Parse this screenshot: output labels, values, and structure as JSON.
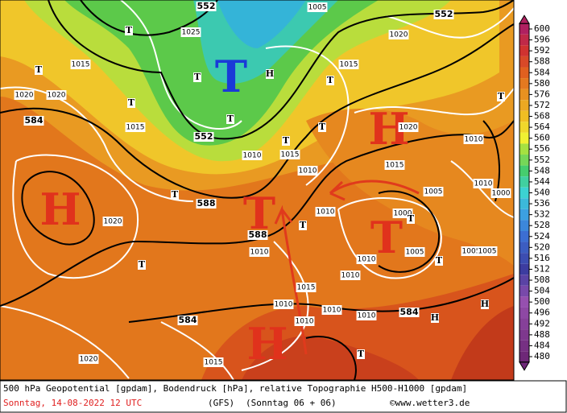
{
  "map": {
    "highs": [
      "H",
      "H",
      "H"
    ],
    "lows": [
      "T",
      "T",
      "T"
    ],
    "geopotential_labels": [
      "552",
      "552",
      "552",
      "584",
      "588",
      "584",
      "584",
      "588"
    ],
    "pressure_labels": [
      "1000",
      "1005",
      "1020",
      "1025",
      "1015",
      "1015",
      "1020",
      "1020",
      "1015",
      "1010",
      "1015",
      "1010",
      "1010",
      "1015",
      "1020",
      "1015",
      "1010",
      "1010",
      "1005",
      "1010",
      "1005",
      "1005",
      "1010",
      "1010",
      "1020",
      "1015",
      "1010",
      "1010",
      "1020",
      "1005",
      "1010",
      "1010",
      "1000"
    ],
    "small_markers": [
      "T",
      "T",
      "T",
      "T",
      "H",
      "T",
      "T",
      "T",
      "T",
      "H",
      "T",
      "T",
      "T",
      "T",
      "H",
      "T",
      "T",
      "T"
    ]
  },
  "colorbar": {
    "ticks": [
      600,
      596,
      592,
      588,
      584,
      580,
      576,
      572,
      568,
      564,
      560,
      556,
      552,
      548,
      544,
      540,
      536,
      532,
      528,
      524,
      520,
      516,
      512,
      508,
      504,
      500,
      496,
      492,
      488,
      484,
      480
    ]
  },
  "footer": {
    "description": "500 hPa Geopotential [gpdam], Bodendruck [hPa], relative Topographie H500-H1000 [gpdam]",
    "date": "Sonntag, 14-08-2022  12 UTC",
    "model": "(GFS)",
    "run": "(Sonntag 06 + 06)",
    "copyright": "©www.wetter3.de"
  }
}
